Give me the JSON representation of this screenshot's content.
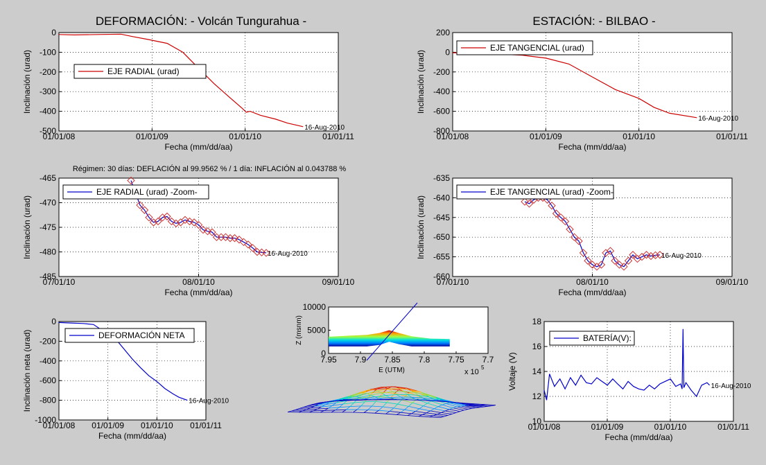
{
  "header": {
    "left_title": "DEFORMACIÓN: - Volcán Tungurahua -",
    "right_title": "ESTACIÓN: - BILBAO -",
    "regime": "Régimen: 30 días: DEFLACIÓN al 99.9562 % / 1 día: INFLACIÓN al 0.043788 %"
  },
  "colors": {
    "radial": "#cc0000",
    "blue": "#0000cc",
    "marker": "#cc3333"
  },
  "chart_data": [
    {
      "id": "radial",
      "type": "line",
      "color": "#cc0000",
      "legend": "EJE RADIAL (urad)",
      "legend_position": "left-middle",
      "xlabel": "Fecha (mm/dd/aa)",
      "ylabel": "Inclinación (urad)",
      "grid": true,
      "xlim": [
        "2008-01-01",
        "2011-01-01"
      ],
      "ylim": [
        -500,
        0
      ],
      "xticks": [
        "01/01/08",
        "01/01/09",
        "01/01/10",
        "01/01/11"
      ],
      "yticks": [
        0,
        -100,
        -200,
        -300,
        -400,
        -500
      ],
      "end_label": "16-Aug-2010",
      "series": [
        {
          "x": [
            "2008-01-01",
            "2008-03-01",
            "2008-06-01",
            "2008-09-01",
            "2008-10-15",
            "2008-12-15",
            "2009-03-01",
            "2009-05-01",
            "2009-07-01",
            "2009-09-01",
            "2009-11-01",
            "2009-12-20",
            "2010-01-05",
            "2010-01-20",
            "2010-03-01",
            "2010-05-01",
            "2010-06-15",
            "2010-08-16"
          ],
          "y": [
            -10,
            -12,
            -10,
            -8,
            -20,
            -35,
            -55,
            -100,
            -180,
            -260,
            -330,
            -385,
            -405,
            -400,
            -420,
            -440,
            -460,
            -478
          ]
        }
      ]
    },
    {
      "id": "tangential",
      "type": "line",
      "color": "#cc0000",
      "legend": "EJE TANGENCIAL (urad)",
      "legend_position": "top-left",
      "xlabel": "Fecha (mm/dd/aa)",
      "ylabel": "Inclinación (urad)",
      "grid": true,
      "xlim": [
        "2008-01-01",
        "2011-01-01"
      ],
      "ylim": [
        -800,
        200
      ],
      "xticks": [
        "01/01/08",
        "01/01/09",
        "01/01/10",
        "01/01/11"
      ],
      "yticks": [
        200,
        0,
        -200,
        -400,
        -600,
        -800
      ],
      "end_label": "16-Aug-2010",
      "series": [
        {
          "x": [
            "2008-01-01",
            "2008-06-01",
            "2008-10-01",
            "2009-01-01",
            "2009-04-01",
            "2009-07-01",
            "2009-10-01",
            "2010-01-01",
            "2010-03-01",
            "2010-05-01",
            "2010-08-16"
          ],
          "y": [
            -5,
            -15,
            -30,
            -60,
            -120,
            -250,
            -380,
            -470,
            -560,
            -620,
            -665
          ]
        }
      ]
    },
    {
      "id": "radial-zoom",
      "type": "line",
      "color": "#0000cc",
      "marker_color": "#cc3333",
      "legend": "EJE RADIAL (urad) -Zoom-",
      "legend_position": "top-left",
      "xlabel": "Fecha (mm/dd/aa)",
      "ylabel": "Inclinación (urad)",
      "grid": true,
      "xlim": [
        "2010-07-01",
        "2010-09-01"
      ],
      "ylim": [
        -485,
        -465
      ],
      "xticks": [
        "07/01/10",
        "08/01/10",
        "09/01/10"
      ],
      "yticks": [
        -465,
        -470,
        -475,
        -480,
        -485
      ],
      "end_label": "16-Aug-2010",
      "series": [
        {
          "x": [
            "2010-07-17",
            "2010-07-19",
            "2010-07-20",
            "2010-07-21",
            "2010-07-22",
            "2010-07-23",
            "2010-07-24",
            "2010-07-25",
            "2010-07-26",
            "2010-07-27",
            "2010-07-28",
            "2010-07-29",
            "2010-07-30",
            "2010-07-31",
            "2010-08-01",
            "2010-08-02",
            "2010-08-03",
            "2010-08-04",
            "2010-08-05",
            "2010-08-06",
            "2010-08-07",
            "2010-08-08",
            "2010-08-09",
            "2010-08-10",
            "2010-08-11",
            "2010-08-12",
            "2010-08-13",
            "2010-08-14",
            "2010-08-15",
            "2010-08-16"
          ],
          "y": [
            -465.5,
            -470.5,
            -471.5,
            -473,
            -474,
            -473.8,
            -473,
            -472.8,
            -473.8,
            -474.2,
            -474,
            -473.5,
            -473.8,
            -474,
            -474.5,
            -475.5,
            -475.8,
            -476,
            -477,
            -477,
            -477,
            -477.2,
            -477.2,
            -477.5,
            -478,
            -478.5,
            -479.2,
            -480,
            -480.1,
            -480.2
          ]
        }
      ]
    },
    {
      "id": "tangential-zoom",
      "type": "line",
      "color": "#0000cc",
      "marker_color": "#cc3333",
      "legend": "EJE TANGENCIAL (urad) -Zoom-",
      "legend_position": "top-left",
      "xlabel": "Fecha (mm/dd/aa)",
      "ylabel": "Inclinación (urad)",
      "grid": true,
      "xlim": [
        "2010-07-01",
        "2010-09-01"
      ],
      "ylim": [
        -660,
        -635
      ],
      "xticks": [
        "07/01/10",
        "08/01/10",
        "09/01/10"
      ],
      "yticks": [
        -635,
        -640,
        -645,
        -650,
        -655,
        -660
      ],
      "end_label": "16-Aug-2010",
      "series": [
        {
          "x": [
            "2010-07-17",
            "2010-07-18",
            "2010-07-19",
            "2010-07-20",
            "2010-07-21",
            "2010-07-22",
            "2010-07-23",
            "2010-07-24",
            "2010-07-25",
            "2010-07-26",
            "2010-07-27",
            "2010-07-28",
            "2010-07-29",
            "2010-07-30",
            "2010-07-31",
            "2010-08-01",
            "2010-08-02",
            "2010-08-03",
            "2010-08-04",
            "2010-08-05",
            "2010-08-06",
            "2010-08-07",
            "2010-08-08",
            "2010-08-09",
            "2010-08-10",
            "2010-08-11",
            "2010-08-12",
            "2010-08-13",
            "2010-08-14",
            "2010-08-15",
            "2010-08-16"
          ],
          "y": [
            -641,
            -641.5,
            -640.5,
            -640,
            -640,
            -640.5,
            -642,
            -644,
            -645,
            -646,
            -648,
            -650,
            -651,
            -654,
            -656,
            -657,
            -657.5,
            -657,
            -654,
            -653.5,
            -656,
            -657,
            -657.5,
            -656,
            -654.5,
            -655.5,
            -655,
            -654.5,
            -654.8,
            -654.6,
            -654.5
          ]
        }
      ]
    },
    {
      "id": "net",
      "type": "line",
      "color": "#0000cc",
      "legend": "DEFORMACIÓN NETA",
      "legend_position": "top-left",
      "xlabel": "Fecha (mm/dd/aa)",
      "ylabel": "Inclinación neta (urad)",
      "grid": true,
      "xlim": [
        "2008-01-01",
        "2011-01-01"
      ],
      "ylim": [
        -1000,
        0
      ],
      "xticks": [
        "01/01/08",
        "01/01/09",
        "01/01/10",
        "01/01/11"
      ],
      "yticks": [
        0,
        -200,
        -400,
        -600,
        -800,
        -1000
      ],
      "end_label": "16-Aug-2010",
      "series": [
        {
          "x": [
            "2008-01-01",
            "2008-04-01",
            "2008-07-01",
            "2008-09-15",
            "2008-12-01",
            "2009-03-01",
            "2009-05-01",
            "2009-07-01",
            "2009-09-01",
            "2009-11-01",
            "2010-01-01",
            "2010-03-01",
            "2010-05-01",
            "2010-06-15",
            "2010-08-16"
          ],
          "y": [
            -10,
            -15,
            -20,
            -30,
            -100,
            -180,
            -280,
            -380,
            -470,
            -550,
            -610,
            -680,
            -735,
            -770,
            -800
          ]
        }
      ]
    },
    {
      "id": "battery",
      "type": "line",
      "color": "#0000cc",
      "legend": "BATERÍA(V):",
      "legend_position": "top-left",
      "xlabel": "Fecha (mm/dd/aa)",
      "ylabel": "Voltaje (V)",
      "grid": true,
      "xlim": [
        "2008-01-01",
        "2011-01-01"
      ],
      "ylim": [
        10,
        18
      ],
      "xticks": [
        "01/01/08",
        "01/01/09",
        "01/01/10",
        "01/01/11"
      ],
      "yticks": [
        18,
        16,
        14,
        12,
        10
      ],
      "end_label": "16-Aug-2010",
      "series": [
        {
          "x": [
            "2008-01-01",
            "2008-01-15",
            "2008-02-01",
            "2008-03-01",
            "2008-04-01",
            "2008-05-01",
            "2008-06-01",
            "2008-07-01",
            "2008-08-01",
            "2008-09-01",
            "2008-10-01",
            "2008-11-01",
            "2008-12-01",
            "2009-01-01",
            "2009-02-01",
            "2009-03-01",
            "2009-04-01",
            "2009-05-01",
            "2009-06-01",
            "2009-07-01",
            "2009-08-01",
            "2009-09-01",
            "2009-10-01",
            "2009-11-01",
            "2009-12-01",
            "2010-01-01",
            "2010-02-01",
            "2010-03-01",
            "2010-03-10",
            "2010-03-15",
            "2010-03-20",
            "2010-04-01",
            "2010-05-01",
            "2010-06-01",
            "2010-07-01",
            "2010-08-01",
            "2010-08-16"
          ],
          "y": [
            12.5,
            11.7,
            13.8,
            12.8,
            13.4,
            12.6,
            13.5,
            12.9,
            13.7,
            13.1,
            13.0,
            13.5,
            13.2,
            12.9,
            13.4,
            13.0,
            12.6,
            13.2,
            12.8,
            12.6,
            12.5,
            12.9,
            12.6,
            13.0,
            13.2,
            13.4,
            12.8,
            13.0,
            12.6,
            17.4,
            12.7,
            13.1,
            12.5,
            12.0,
            12.9,
            13.1,
            12.9
          ]
        }
      ]
    },
    {
      "id": "surface-profile",
      "type": "area",
      "xlabel": "E (UTM)",
      "ylabel": "Z (msnm)",
      "x_exponent": "x 10",
      "x_exponent_power": "5",
      "xlim": [
        7.7,
        7.95
      ],
      "x_reversed": true,
      "ylim": [
        0,
        10000
      ],
      "xticks": [
        "7.95",
        "7.9",
        "7.85",
        "7.8",
        "7.75",
        "7.7"
      ],
      "yticks": [
        10000,
        5000,
        0
      ],
      "surface": {
        "x": [
          7.95,
          7.92,
          7.89,
          7.87,
          7.855,
          7.84,
          7.82,
          7.79,
          7.76
        ],
        "z": [
          3600,
          3800,
          4000,
          4400,
          5000,
          4400,
          3700,
          3200,
          3100
        ],
        "colormap": "jet"
      }
    }
  ]
}
